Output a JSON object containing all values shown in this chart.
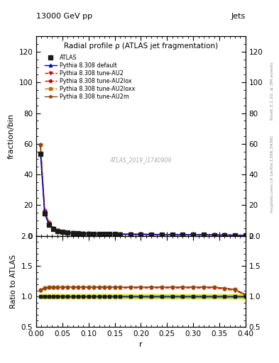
{
  "title": "Radial profile ρ (ATLAS jet fragmentation)",
  "top_left_label": "13000 GeV pp",
  "top_right_label": "Jets",
  "right_label_top": "Rivet 3.1.10, ≥ 3M events",
  "right_label_bottom": "mcplots.cern.ch [arXiv:1306.3436]",
  "watermark": "ATLAS_2019_I1740909",
  "ylabel_main": "fraction/bin",
  "ylabel_ratio": "Ratio to ATLAS",
  "xlabel": "r",
  "ylim_main": [
    0,
    130
  ],
  "ylim_ratio": [
    0.5,
    2.0
  ],
  "yticks_main": [
    0,
    20,
    40,
    60,
    80,
    100,
    120
  ],
  "yticks_ratio": [
    0.5,
    1.0,
    1.5,
    2.0
  ],
  "xlim": [
    0.0,
    0.4
  ],
  "r_values": [
    0.008,
    0.016,
    0.024,
    0.032,
    0.04,
    0.05,
    0.06,
    0.07,
    0.08,
    0.09,
    0.1,
    0.11,
    0.12,
    0.13,
    0.14,
    0.15,
    0.16,
    0.18,
    0.2,
    0.22,
    0.24,
    0.26,
    0.28,
    0.3,
    0.32,
    0.34,
    0.36,
    0.38,
    0.4
  ],
  "atlas_values": [
    53.5,
    14.5,
    7.5,
    4.5,
    3.2,
    2.5,
    2.0,
    1.8,
    1.6,
    1.5,
    1.4,
    1.3,
    1.25,
    1.2,
    1.15,
    1.1,
    1.05,
    1.0,
    0.95,
    0.9,
    0.85,
    0.8,
    0.75,
    0.7,
    0.65,
    0.6,
    0.55,
    0.5,
    0.45
  ],
  "ratio_default": [
    1.0,
    1.0,
    1.0,
    1.0,
    1.0,
    1.0,
    1.0,
    1.0,
    1.0,
    1.0,
    1.0,
    1.0,
    1.0,
    1.0,
    1.0,
    1.0,
    1.0,
    1.0,
    1.0,
    1.0,
    1.0,
    1.0,
    1.0,
    1.0,
    1.0,
    1.0,
    1.0,
    1.0,
    1.0
  ],
  "ratio_au2": [
    1.1,
    1.13,
    1.14,
    1.14,
    1.14,
    1.14,
    1.14,
    1.14,
    1.14,
    1.14,
    1.14,
    1.14,
    1.14,
    1.14,
    1.14,
    1.14,
    1.14,
    1.14,
    1.14,
    1.14,
    1.14,
    1.14,
    1.14,
    1.14,
    1.14,
    1.14,
    1.12,
    1.1,
    1.02
  ],
  "ratio_au2lox": [
    1.11,
    1.14,
    1.15,
    1.155,
    1.155,
    1.155,
    1.155,
    1.155,
    1.155,
    1.155,
    1.155,
    1.155,
    1.155,
    1.155,
    1.155,
    1.155,
    1.155,
    1.155,
    1.155,
    1.155,
    1.155,
    1.155,
    1.155,
    1.155,
    1.155,
    1.155,
    1.135,
    1.115,
    1.03
  ],
  "ratio_au2loxx": [
    1.11,
    1.14,
    1.15,
    1.155,
    1.155,
    1.155,
    1.155,
    1.155,
    1.155,
    1.155,
    1.155,
    1.155,
    1.155,
    1.155,
    1.155,
    1.155,
    1.155,
    1.155,
    1.155,
    1.155,
    1.155,
    1.155,
    1.155,
    1.155,
    1.155,
    1.155,
    1.135,
    1.115,
    1.03
  ],
  "ratio_au2m": [
    1.11,
    1.14,
    1.15,
    1.155,
    1.155,
    1.155,
    1.155,
    1.155,
    1.155,
    1.155,
    1.155,
    1.155,
    1.155,
    1.155,
    1.155,
    1.155,
    1.155,
    1.155,
    1.155,
    1.155,
    1.155,
    1.155,
    1.155,
    1.155,
    1.155,
    1.155,
    1.135,
    1.115,
    1.03
  ],
  "default_color": "#0000CC",
  "au2_color": "#CC0000",
  "au2lox_color": "#CC0000",
  "au2loxx_color": "#CC6600",
  "au2m_color": "#8B4513",
  "green_band_color": "#7FBF00",
  "yellow_band_color": "#FFFF66",
  "background_color": "#FFFFFF",
  "legend_entries": [
    "ATLAS",
    "Pythia 8.308 default",
    "Pythia 8.308 tune-AU2",
    "Pythia 8.308 tune-AU2lox",
    "Pythia 8.308 tune-AU2loxx",
    "Pythia 8.308 tune-AU2m"
  ]
}
